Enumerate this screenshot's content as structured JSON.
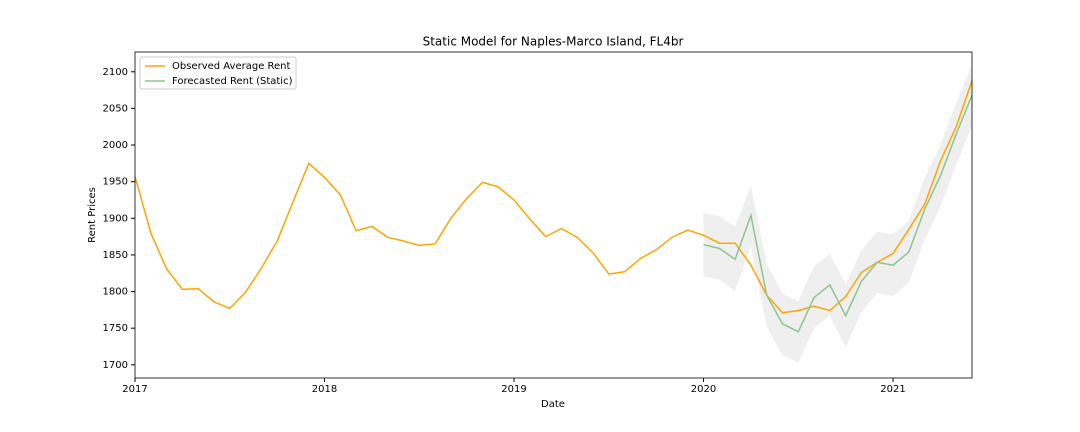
{
  "chart_data": {
    "type": "line",
    "title": "Static Model for Naples-Marco Island, FL4br",
    "x_label": "Date",
    "y_label": "Rent Prices",
    "x": [
      "2017-01",
      "2017-02",
      "2017-03",
      "2017-04",
      "2017-05",
      "2017-06",
      "2017-07",
      "2017-08",
      "2017-09",
      "2017-10",
      "2017-11",
      "2017-12",
      "2018-01",
      "2018-02",
      "2018-03",
      "2018-04",
      "2018-05",
      "2018-06",
      "2018-07",
      "2018-08",
      "2018-09",
      "2018-10",
      "2018-11",
      "2018-12",
      "2019-01",
      "2019-02",
      "2019-03",
      "2019-04",
      "2019-05",
      "2019-06",
      "2019-07",
      "2019-08",
      "2019-09",
      "2019-10",
      "2019-11",
      "2019-12",
      "2020-01",
      "2020-02",
      "2020-03",
      "2020-04",
      "2020-05",
      "2020-06",
      "2020-07",
      "2020-08",
      "2020-09",
      "2020-10",
      "2020-11",
      "2020-12",
      "2021-01",
      "2021-02",
      "2021-03",
      "2021-04",
      "2021-05",
      "2021-06"
    ],
    "series": [
      {
        "name": "Observed Average Rent",
        "color": "#ffa500",
        "values": [
          1957,
          1880,
          1831,
          1803,
          1804,
          1786,
          1777,
          1799,
          1832,
          1869,
          1922,
          1975,
          1956,
          1932,
          1883,
          1889,
          1874,
          1869,
          1863,
          1865,
          1900,
          1927,
          1949,
          1943,
          1925,
          1899,
          1875,
          1886,
          1874,
          1853,
          1824,
          1827,
          1845,
          1857,
          1874,
          1884,
          1877,
          1866,
          1866,
          1836,
          1795,
          1771,
          1774,
          1780,
          1774,
          1793,
          1826,
          1840,
          1852,
          1885,
          1919,
          1978,
          2025,
          2088
        ]
      },
      {
        "name": "Forecasted Rent (Static)",
        "color": "#8fc48f",
        "band_color": "#dcdcdc",
        "values": [
          null,
          null,
          null,
          null,
          null,
          null,
          null,
          null,
          null,
          null,
          null,
          null,
          null,
          null,
          null,
          null,
          null,
          null,
          null,
          null,
          null,
          null,
          null,
          null,
          null,
          null,
          null,
          null,
          null,
          null,
          null,
          null,
          null,
          null,
          null,
          null,
          1864,
          1859,
          1844,
          1904,
          1795,
          1756,
          1745,
          1792,
          1809,
          1767,
          1814,
          1840,
          1836,
          1854,
          1912,
          1958,
          2015,
          2068
        ],
        "lower": [
          null,
          null,
          null,
          null,
          null,
          null,
          null,
          null,
          null,
          null,
          null,
          null,
          null,
          null,
          null,
          null,
          null,
          null,
          null,
          null,
          null,
          null,
          null,
          null,
          null,
          null,
          null,
          null,
          null,
          null,
          null,
          null,
          null,
          null,
          null,
          null,
          1821,
          1816,
          1801,
          1862,
          1752,
          1713,
          1703,
          1750,
          1767,
          1724,
          1772,
          1798,
          1794,
          1812,
          1870,
          1916,
          1973,
          2026
        ],
        "upper": [
          null,
          null,
          null,
          null,
          null,
          null,
          null,
          null,
          null,
          null,
          null,
          null,
          null,
          null,
          null,
          null,
          null,
          null,
          null,
          null,
          null,
          null,
          null,
          null,
          null,
          null,
          null,
          null,
          null,
          null,
          null,
          null,
          null,
          null,
          null,
          null,
          1907,
          1903,
          1889,
          1945,
          1838,
          1797,
          1787,
          1835,
          1851,
          1810,
          1856,
          1882,
          1878,
          1896,
          1955,
          2000,
          2057,
          2110
        ]
      }
    ],
    "xlim": [
      "2017-01",
      "2021-06"
    ],
    "xticks": [
      {
        "value": "2017-01",
        "label": "2017"
      },
      {
        "value": "2018-01",
        "label": "2018"
      },
      {
        "value": "2019-01",
        "label": "2019"
      },
      {
        "value": "2020-01",
        "label": "2020"
      },
      {
        "value": "2021-01",
        "label": "2021"
      }
    ],
    "ylim": [
      1682,
      2127
    ],
    "yticks": [
      1700,
      1750,
      1800,
      1850,
      1900,
      1950,
      2000,
      2050,
      2100
    ],
    "legend": "upper left"
  }
}
